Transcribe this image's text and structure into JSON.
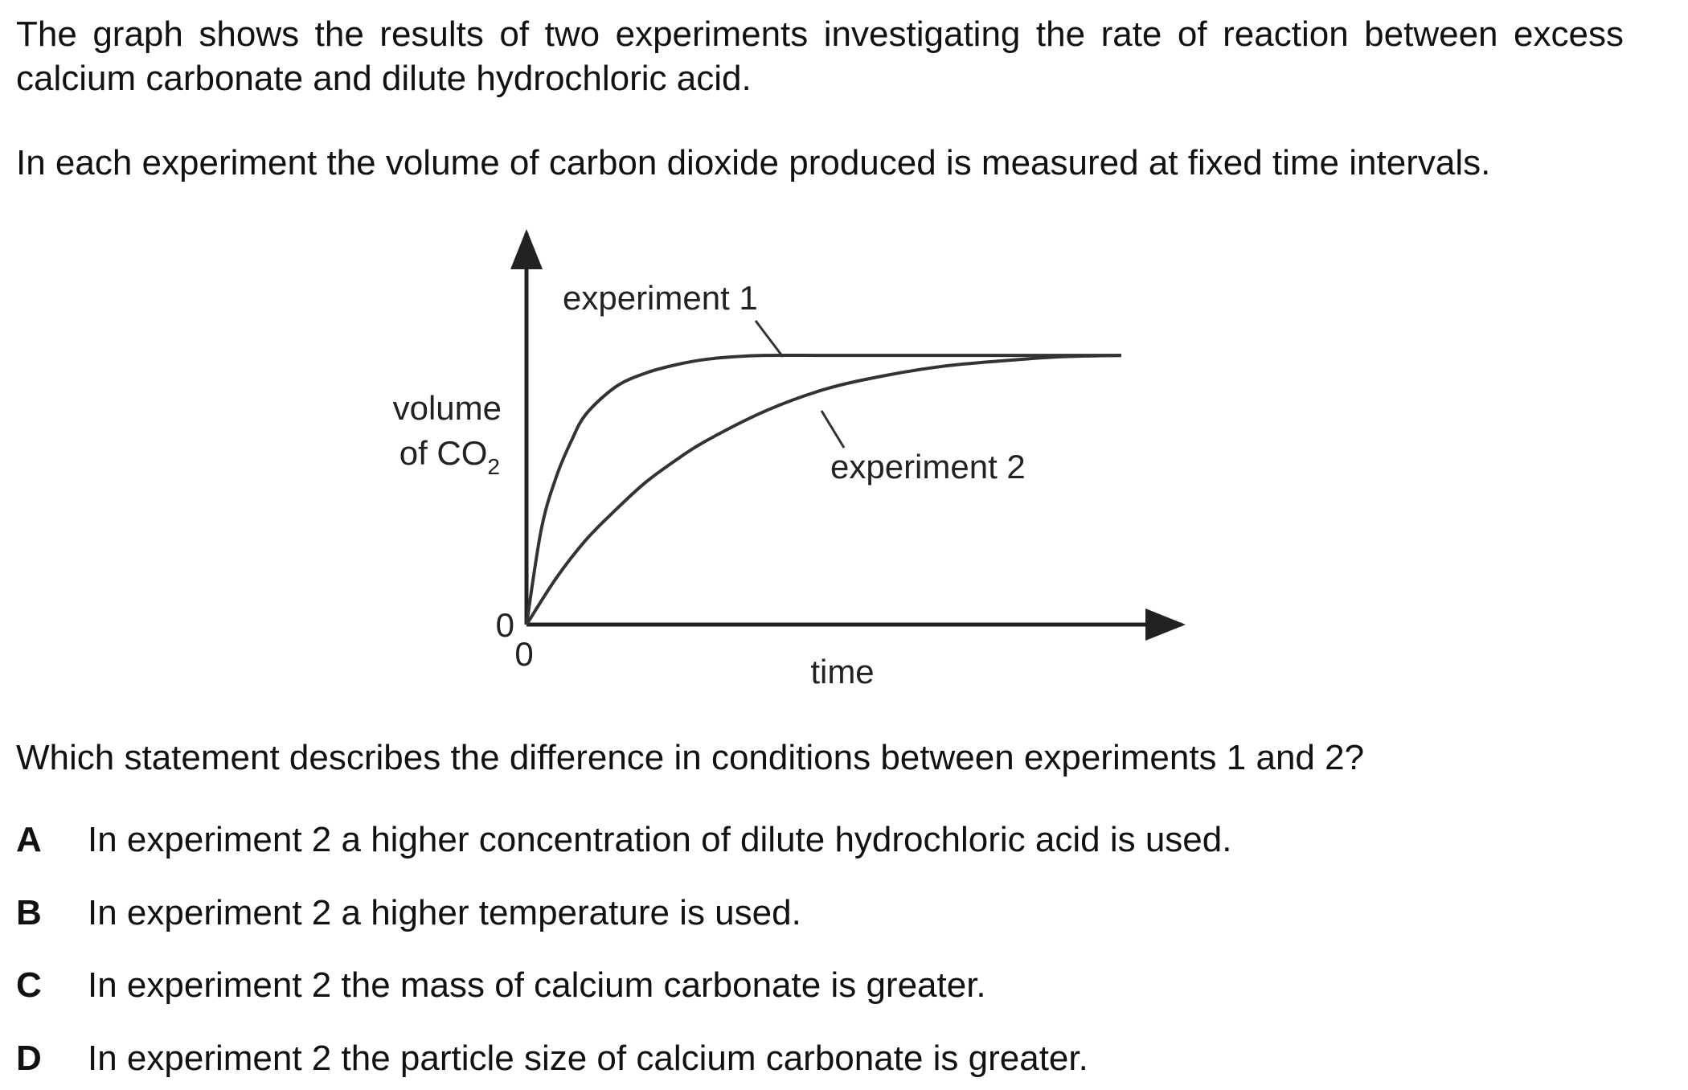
{
  "question": {
    "intro": "The graph shows the results of two experiments investigating the rate of reaction between excess calcium carbonate and dilute hydrochloric acid.",
    "method": "In each experiment the volume of carbon dioxide produced is measured at fixed time intervals.",
    "prompt": "Which statement describes the difference in conditions between experiments 1 and 2?"
  },
  "options": [
    {
      "letter": "A",
      "text": "In experiment 2 a higher concentration of dilute hydrochloric acid is used."
    },
    {
      "letter": "B",
      "text": "In experiment 2 a higher temperature is used."
    },
    {
      "letter": "C",
      "text": "In experiment 2 the mass of calcium carbonate is greater."
    },
    {
      "letter": "D",
      "text": "In experiment 2 the particle size of calcium carbonate is greater."
    }
  ],
  "chart_data": {
    "type": "line",
    "title": "",
    "ylabel_line1": "volume",
    "ylabel_line2_prefix": "of CO",
    "ylabel_line2_subscript": "2",
    "xlabel": "time",
    "x_origin_label": "0",
    "y_origin_label": "0",
    "grid": false,
    "xlim": [
      0,
      10
    ],
    "ylim": [
      0,
      10
    ],
    "series": [
      {
        "name": "experiment 1",
        "x": [
          0,
          0.25,
          0.5,
          0.75,
          1,
          1.5,
          2,
          2.5,
          3,
          3.5,
          4,
          5,
          6,
          7,
          8,
          9,
          10
        ],
        "y": [
          0,
          3.5,
          5.4,
          6.7,
          7.7,
          8.7,
          9.2,
          9.5,
          9.7,
          9.8,
          9.85,
          9.85,
          9.85,
          9.85,
          9.85,
          9.85,
          9.85
        ]
      },
      {
        "name": "experiment 2",
        "x": [
          0,
          0.5,
          1,
          1.5,
          2,
          2.5,
          3,
          4,
          5,
          6,
          7,
          8,
          9,
          10
        ],
        "y": [
          0,
          1.7,
          3.1,
          4.2,
          5.2,
          6.0,
          6.7,
          7.8,
          8.6,
          9.1,
          9.45,
          9.65,
          9.8,
          9.85
        ]
      }
    ]
  }
}
